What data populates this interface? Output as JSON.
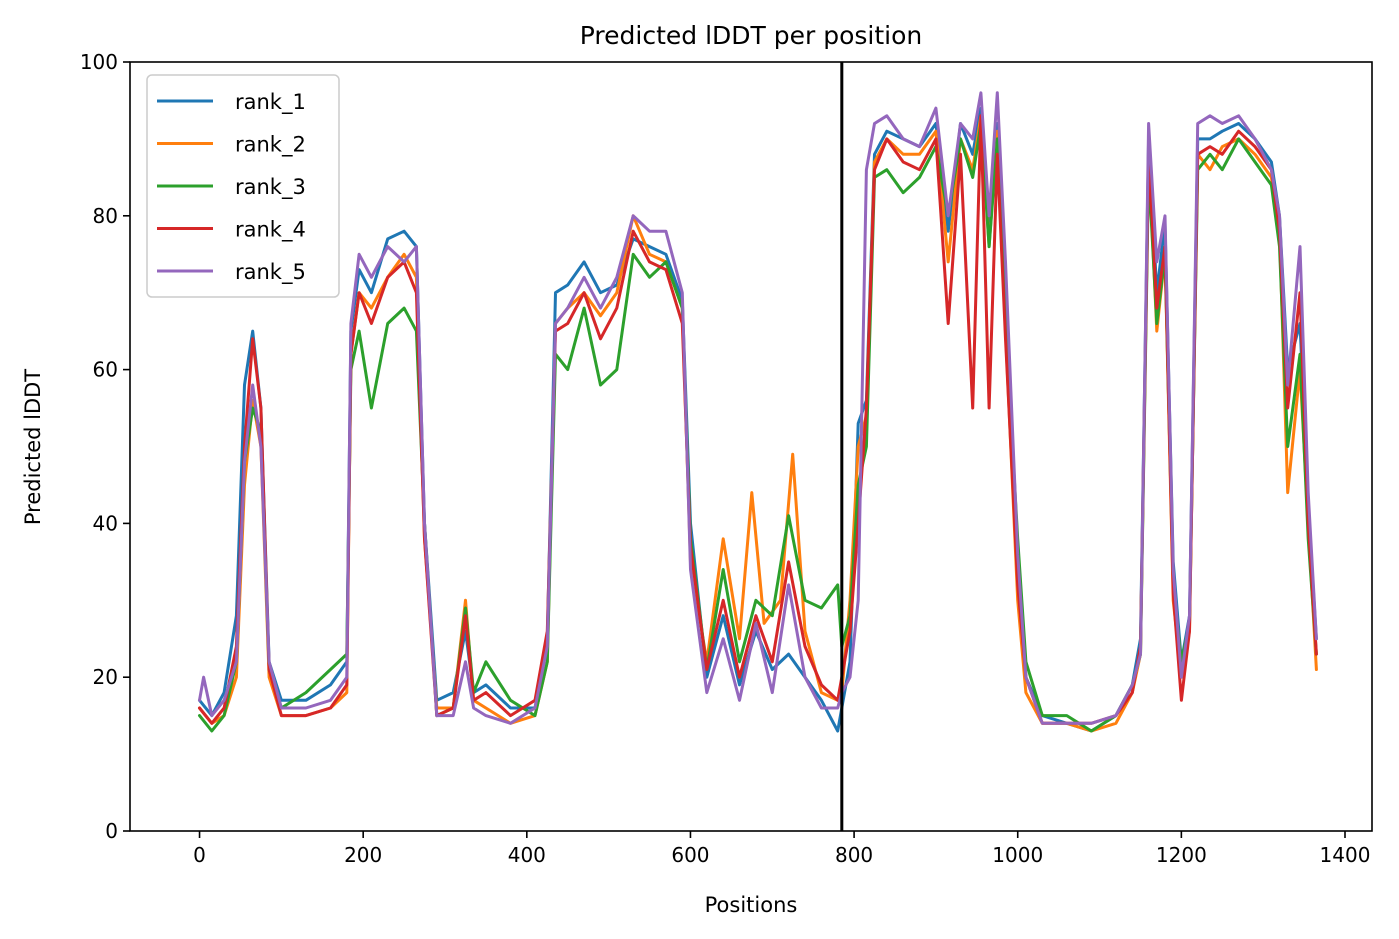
{
  "chart_data": {
    "type": "line",
    "title": "Predicted lDDT per position",
    "xlabel": "Positions",
    "ylabel": "Predicted lDDT",
    "xlim": [
      -85,
      1433
    ],
    "ylim": [
      0,
      100
    ],
    "xticks": [
      0,
      200,
      400,
      600,
      800,
      1000,
      1200,
      1400
    ],
    "yticks": [
      0,
      20,
      40,
      60,
      80,
      100
    ],
    "grid": false,
    "legend_position": "upper-left",
    "vline_x": 785,
    "series": [
      {
        "name": "rank_1",
        "color": "#1f77b4",
        "x": [
          0,
          15,
          30,
          45,
          55,
          65,
          75,
          85,
          100,
          130,
          160,
          180,
          185,
          195,
          210,
          230,
          250,
          265,
          275,
          290,
          310,
          325,
          335,
          350,
          380,
          410,
          425,
          435,
          450,
          470,
          490,
          510,
          530,
          550,
          570,
          590,
          600,
          620,
          640,
          660,
          680,
          700,
          720,
          740,
          760,
          780,
          785,
          795,
          805,
          815,
          825,
          840,
          860,
          880,
          900,
          915,
          930,
          945,
          955,
          965,
          975,
          985,
          1000,
          1010,
          1030,
          1060,
          1090,
          1120,
          1140,
          1150,
          1160,
          1170,
          1180,
          1190,
          1200,
          1210,
          1220,
          1235,
          1250,
          1270,
          1290,
          1310,
          1320,
          1330,
          1345,
          1355,
          1365
        ],
        "y": [
          17,
          15,
          18,
          28,
          58,
          65,
          55,
          22,
          17,
          17,
          19,
          22,
          65,
          73,
          70,
          77,
          78,
          76,
          40,
          17,
          18,
          26,
          18,
          19,
          16,
          16,
          25,
          70,
          71,
          74,
          70,
          71,
          77,
          76,
          75,
          69,
          40,
          20,
          28,
          19,
          26,
          21,
          23,
          20,
          17,
          13,
          16,
          22,
          53,
          56,
          88,
          91,
          90,
          89,
          92,
          78,
          92,
          88,
          94,
          78,
          92,
          68,
          35,
          20,
          15,
          14,
          13,
          15,
          19,
          25,
          90,
          70,
          79,
          35,
          22,
          28,
          90,
          90,
          91,
          92,
          90,
          87,
          80,
          60,
          66,
          42,
          25
        ]
      },
      {
        "name": "rank_2",
        "color": "#ff7f0e",
        "x": [
          0,
          15,
          30,
          45,
          55,
          65,
          75,
          85,
          100,
          130,
          160,
          180,
          185,
          195,
          210,
          230,
          250,
          265,
          275,
          290,
          310,
          325,
          335,
          350,
          380,
          410,
          425,
          435,
          450,
          470,
          490,
          510,
          530,
          550,
          570,
          590,
          600,
          620,
          640,
          660,
          675,
          690,
          710,
          725,
          740,
          760,
          780,
          785,
          795,
          805,
          815,
          825,
          840,
          860,
          880,
          900,
          915,
          930,
          945,
          955,
          965,
          975,
          985,
          1000,
          1010,
          1030,
          1060,
          1090,
          1120,
          1140,
          1150,
          1160,
          1170,
          1180,
          1190,
          1200,
          1210,
          1220,
          1235,
          1250,
          1270,
          1290,
          1310,
          1320,
          1330,
          1345,
          1355,
          1365
        ],
        "y": [
          16,
          14,
          15,
          20,
          45,
          56,
          50,
          20,
          15,
          15,
          16,
          18,
          62,
          70,
          68,
          72,
          75,
          72,
          38,
          16,
          16,
          30,
          17,
          16,
          14,
          15,
          22,
          66,
          68,
          70,
          67,
          70,
          80,
          75,
          74,
          68,
          35,
          22,
          38,
          25,
          44,
          27,
          30,
          49,
          26,
          18,
          17,
          18,
          30,
          50,
          54,
          87,
          90,
          88,
          88,
          91,
          74,
          90,
          86,
          93,
          76,
          91,
          65,
          30,
          18,
          14,
          14,
          13,
          14,
          18,
          23,
          88,
          65,
          75,
          30,
          20,
          26,
          88,
          86,
          89,
          90,
          88,
          85,
          78,
          44,
          60,
          40,
          21
        ]
      },
      {
        "name": "rank_3",
        "color": "#2ca02c",
        "x": [
          0,
          15,
          30,
          45,
          55,
          65,
          75,
          85,
          100,
          130,
          160,
          180,
          185,
          195,
          210,
          230,
          250,
          265,
          275,
          290,
          310,
          325,
          335,
          350,
          380,
          410,
          425,
          435,
          450,
          470,
          490,
          510,
          530,
          550,
          570,
          590,
          600,
          620,
          640,
          660,
          680,
          700,
          720,
          740,
          760,
          780,
          785,
          795,
          805,
          815,
          825,
          840,
          860,
          880,
          900,
          915,
          930,
          945,
          955,
          965,
          975,
          985,
          1000,
          1010,
          1030,
          1060,
          1090,
          1120,
          1140,
          1150,
          1160,
          1170,
          1180,
          1190,
          1200,
          1210,
          1220,
          1235,
          1250,
          1270,
          1290,
          1310,
          1320,
          1330,
          1345,
          1355,
          1365
        ],
        "y": [
          15,
          13,
          15,
          22,
          48,
          55,
          52,
          21,
          16,
          18,
          21,
          23,
          60,
          65,
          55,
          66,
          68,
          65,
          40,
          15,
          16,
          29,
          18,
          22,
          17,
          15,
          22,
          62,
          60,
          68,
          58,
          60,
          75,
          72,
          74,
          68,
          38,
          21,
          34,
          22,
          30,
          28,
          41,
          30,
          29,
          32,
          24,
          28,
          45,
          50,
          85,
          86,
          83,
          85,
          89,
          80,
          90,
          85,
          92,
          76,
          90,
          66,
          38,
          22,
          15,
          15,
          13,
          15,
          19,
          23,
          86,
          66,
          75,
          32,
          22,
          27,
          86,
          88,
          86,
          90,
          87,
          84,
          76,
          50,
          62,
          38,
          23
        ]
      },
      {
        "name": "rank_4",
        "color": "#d62728",
        "x": [
          0,
          15,
          30,
          45,
          55,
          65,
          75,
          85,
          100,
          130,
          160,
          180,
          185,
          195,
          210,
          230,
          250,
          265,
          275,
          290,
          310,
          325,
          335,
          350,
          380,
          410,
          425,
          435,
          450,
          470,
          490,
          510,
          530,
          550,
          570,
          590,
          600,
          620,
          640,
          660,
          680,
          700,
          720,
          740,
          760,
          780,
          785,
          795,
          805,
          815,
          825,
          840,
          860,
          880,
          900,
          915,
          930,
          945,
          955,
          965,
          975,
          985,
          1000,
          1010,
          1030,
          1060,
          1090,
          1120,
          1140,
          1150,
          1160,
          1170,
          1180,
          1190,
          1200,
          1210,
          1220,
          1235,
          1250,
          1270,
          1290,
          1310,
          1320,
          1330,
          1345,
          1355,
          1365
        ],
        "y": [
          16,
          14,
          16,
          24,
          50,
          64,
          55,
          21,
          15,
          15,
          16,
          19,
          62,
          70,
          66,
          72,
          74,
          70,
          38,
          15,
          16,
          28,
          17,
          18,
          15,
          17,
          26,
          65,
          66,
          70,
          64,
          68,
          78,
          74,
          73,
          66,
          37,
          21,
          30,
          20,
          28,
          22,
          35,
          24,
          19,
          17,
          20,
          26,
          40,
          55,
          86,
          90,
          87,
          86,
          90,
          66,
          88,
          55,
          93,
          55,
          88,
          64,
          32,
          20,
          14,
          14,
          14,
          15,
          18,
          24,
          88,
          68,
          76,
          31,
          17,
          26,
          88,
          89,
          88,
          91,
          89,
          86,
          78,
          55,
          70,
          40,
          23
        ]
      },
      {
        "name": "rank_5",
        "color": "#9467bd",
        "x": [
          0,
          5,
          15,
          30,
          45,
          55,
          65,
          75,
          85,
          100,
          130,
          160,
          180,
          185,
          195,
          210,
          230,
          250,
          265,
          275,
          290,
          310,
          325,
          335,
          350,
          380,
          410,
          425,
          435,
          450,
          470,
          490,
          510,
          530,
          550,
          570,
          590,
          600,
          620,
          640,
          660,
          680,
          700,
          720,
          740,
          760,
          780,
          785,
          795,
          805,
          815,
          825,
          840,
          860,
          880,
          900,
          915,
          930,
          945,
          955,
          965,
          975,
          985,
          1000,
          1010,
          1030,
          1060,
          1090,
          1120,
          1140,
          1150,
          1160,
          1170,
          1180,
          1190,
          1200,
          1210,
          1220,
          1235,
          1250,
          1270,
          1290,
          1310,
          1320,
          1330,
          1345,
          1355,
          1365
        ],
        "y": [
          17,
          20,
          15,
          17,
          22,
          48,
          58,
          50,
          22,
          16,
          16,
          17,
          20,
          66,
          75,
          72,
          76,
          74,
          76,
          40,
          15,
          15,
          22,
          16,
          15,
          14,
          16,
          24,
          66,
          68,
          72,
          68,
          72,
          80,
          78,
          78,
          70,
          34,
          18,
          25,
          17,
          27,
          18,
          32,
          20,
          16,
          16,
          18,
          20,
          30,
          86,
          92,
          93,
          90,
          89,
          94,
          80,
          92,
          90,
          96,
          80,
          96,
          74,
          36,
          20,
          14,
          14,
          14,
          15,
          19,
          23,
          92,
          74,
          80,
          34,
          20,
          28,
          92,
          93,
          92,
          93,
          90,
          86,
          80,
          58,
          76,
          44,
          25
        ]
      }
    ]
  }
}
